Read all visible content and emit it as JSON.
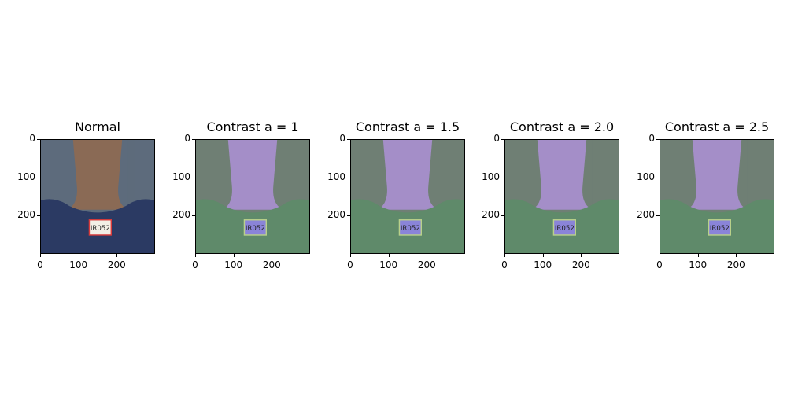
{
  "panels": [
    {
      "title": "Normal",
      "variant": "normal"
    },
    {
      "title": "Contrast a = 1",
      "variant": "contrast"
    },
    {
      "title": "Contrast a = 1.5",
      "variant": "contrast"
    },
    {
      "title": "Contrast a = 2.0",
      "variant": "contrast"
    },
    {
      "title": "Contrast a = 2.5",
      "variant": "contrast"
    }
  ],
  "ticks": {
    "y": [
      "0",
      "100",
      "200"
    ],
    "x": [
      "0",
      "100",
      "200"
    ]
  },
  "image": {
    "label_text": "IR052",
    "colors": {
      "normal": {
        "bg": "#5d6b7c",
        "skin": "#8a6a55",
        "shirt": "#2b3a63",
        "label_bg": "#f2efe6",
        "label_border": "#d83a3a"
      },
      "contrast": {
        "bg": "#6f7f74",
        "skin": "#a48ec8",
        "shirt": "#5f8a6a",
        "label_bg": "#8a84d8",
        "label_border": "#b9d08a"
      }
    }
  }
}
